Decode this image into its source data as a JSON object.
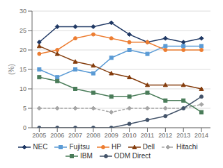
{
  "chart_data": {
    "type": "line",
    "x": [
      2005,
      2006,
      2007,
      2008,
      2009,
      2010,
      2011,
      2012,
      2013,
      2014
    ],
    "series": [
      {
        "name": "NEC",
        "color": "#1f3864",
        "marker": "diamond",
        "line_style": "solid",
        "values": [
          22,
          26,
          26,
          26,
          27,
          24,
          22,
          23,
          22,
          23
        ]
      },
      {
        "name": "Fujitsu",
        "color": "#5b9bd5",
        "marker": "square",
        "line_style": "solid",
        "values": [
          15,
          13,
          15,
          14,
          18,
          20,
          19,
          21,
          21,
          21
        ]
      },
      {
        "name": "HP",
        "color": "#ed7d31",
        "marker": "circle",
        "line_style": "solid",
        "values": [
          19,
          20,
          23,
          24,
          23,
          22,
          22,
          20,
          20,
          20
        ]
      },
      {
        "name": "Dell",
        "color": "#843c0c",
        "marker": "triangle",
        "line_style": "solid",
        "values": [
          21,
          19,
          17,
          16,
          14,
          13,
          11,
          11,
          11,
          10
        ]
      },
      {
        "name": "Hitachi",
        "color": "#a5a5a5",
        "marker": "diamond",
        "line_style": "dashed",
        "values": [
          5,
          5,
          5,
          5,
          4,
          5,
          5,
          5,
          5,
          6
        ]
      },
      {
        "name": "IBM",
        "color": "#4a7c59",
        "marker": "square",
        "line_style": "solid",
        "values": [
          13,
          12,
          10,
          9,
          8,
          8,
          9,
          7,
          7,
          4
        ]
      },
      {
        "name": "ODM Direct",
        "color": "#44546a",
        "marker": "circle",
        "line_style": "solid",
        "values": [
          0,
          0,
          0,
          0,
          0,
          1,
          2,
          3,
          5,
          8
        ]
      }
    ],
    "ylabel": "(%)",
    "xlim": [
      2004.6,
      2014.5
    ],
    "xticks": [
      2005,
      2006,
      2007,
      2008,
      2009,
      2010,
      2011,
      2012,
      2013,
      2014
    ],
    "ylim": [
      0,
      30
    ],
    "yticks": [
      0,
      5,
      10,
      15,
      20,
      25,
      30
    ],
    "grid": true,
    "legend": "bottom"
  }
}
